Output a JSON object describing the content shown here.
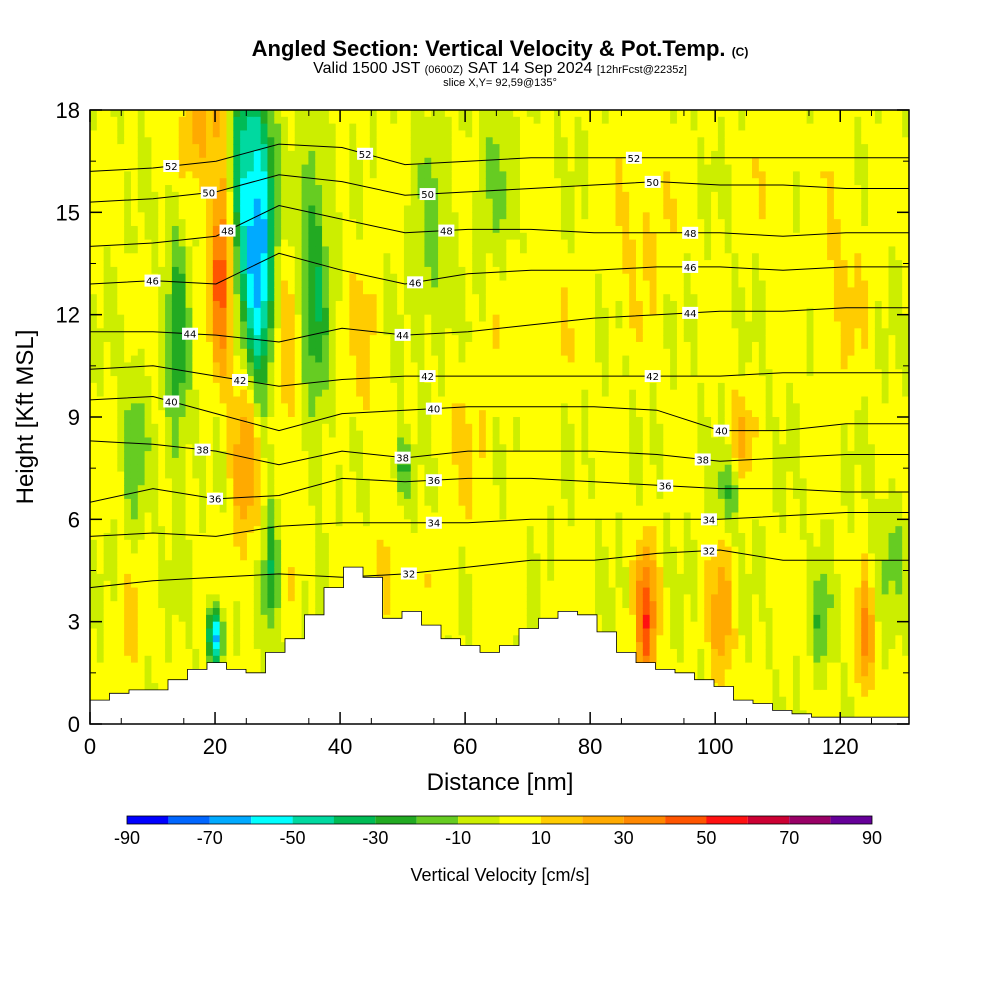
{
  "title": {
    "main": "Angled Section: Vertical Velocity & Pot.Temp.",
    "main_note": "(C)",
    "valid_a": "Valid 1500 JST",
    "valid_b": "(0600Z)",
    "valid_c": "SAT 14 Sep 2024",
    "valid_d": "[12hrFcst@2235z]",
    "slice": "slice X,Y= 92,59@135°"
  },
  "chart_data": {
    "type": "heatmap",
    "xlabel": "Distance [nm]",
    "ylabel": "Height [Kft MSL]",
    "xlim": [
      0,
      131
    ],
    "ylim": [
      0,
      18
    ],
    "x_ticks": [
      0,
      20,
      40,
      60,
      80,
      100,
      120
    ],
    "y_ticks": [
      0,
      3,
      6,
      9,
      12,
      15,
      18
    ],
    "colorbar": {
      "label": "Vertical Velocity [cm/s]",
      "ticks": [
        -90,
        -70,
        -50,
        -30,
        -10,
        10,
        30,
        50,
        70,
        90
      ],
      "bounds": [
        -90,
        -80,
        -70,
        -60,
        -50,
        -40,
        -30,
        -20,
        -10,
        0,
        10,
        20,
        30,
        40,
        50,
        60,
        70,
        80,
        90
      ],
      "colors": [
        "#0000ff",
        "#0066ff",
        "#00aaff",
        "#00ffff",
        "#00d9a0",
        "#00bb55",
        "#22aa22",
        "#66cc22",
        "#ccee00",
        "#ffff00",
        "#ffcc00",
        "#ffaa00",
        "#ff8800",
        "#ff5500",
        "#ff1111",
        "#cc0033",
        "#990066",
        "#660099"
      ]
    },
    "theta_contours": [
      {
        "level": 52,
        "label": "52",
        "y": [
          16.2,
          16.3,
          16.5,
          17.0,
          16.9,
          16.4,
          16.5,
          16.6,
          16.6,
          16.6,
          16.6,
          16.6,
          16.6,
          16.6
        ]
      },
      {
        "level": 50,
        "label": "50",
        "y": [
          15.3,
          15.4,
          15.6,
          16.1,
          15.9,
          15.5,
          15.6,
          15.7,
          15.8,
          15.9,
          15.8,
          15.8,
          15.7,
          15.7
        ]
      },
      {
        "level": 48,
        "label": "48",
        "y": [
          14.0,
          14.1,
          14.3,
          15.2,
          14.8,
          14.4,
          14.5,
          14.5,
          14.4,
          14.4,
          14.4,
          14.3,
          14.4,
          14.4
        ]
      },
      {
        "level": 46,
        "label": "46",
        "y": [
          12.9,
          13.0,
          12.9,
          13.8,
          13.3,
          12.9,
          13.2,
          13.3,
          13.3,
          13.4,
          13.4,
          13.3,
          13.4,
          13.4
        ]
      },
      {
        "level": 44,
        "label": "44",
        "y": [
          11.5,
          11.5,
          11.4,
          11.2,
          11.6,
          11.4,
          11.5,
          11.7,
          11.9,
          12.0,
          12.1,
          12.1,
          12.2,
          12.2
        ]
      },
      {
        "level": 42,
        "label": "42",
        "y": [
          10.4,
          10.5,
          10.2,
          9.9,
          10.1,
          10.2,
          10.2,
          10.2,
          10.2,
          10.2,
          10.2,
          10.3,
          10.3,
          10.3
        ]
      },
      {
        "level": 40,
        "label": "40",
        "y": [
          9.5,
          9.6,
          9.1,
          8.6,
          9.1,
          9.2,
          9.3,
          9.3,
          9.3,
          9.2,
          8.6,
          8.6,
          8.8,
          8.8
        ]
      },
      {
        "level": 38,
        "label": "38",
        "y": [
          8.3,
          8.2,
          8.0,
          7.6,
          8.0,
          7.8,
          8.0,
          8.0,
          8.0,
          7.9,
          7.7,
          7.8,
          7.9,
          7.9
        ]
      },
      {
        "level": 36,
        "label": "36",
        "y": [
          6.5,
          6.9,
          6.6,
          6.7,
          7.2,
          7.1,
          7.2,
          7.2,
          7.1,
          7.0,
          6.9,
          6.9,
          6.8,
          6.8
        ]
      },
      {
        "level": 34,
        "label": "34",
        "y": [
          5.5,
          5.6,
          5.5,
          5.8,
          5.9,
          5.9,
          5.9,
          6.0,
          6.0,
          6.0,
          6.0,
          6.1,
          6.2,
          6.2
        ]
      },
      {
        "level": 32,
        "label": "32",
        "y": [
          4.0,
          4.2,
          4.3,
          4.4,
          4.3,
          4.4,
          4.6,
          4.8,
          4.8,
          5.0,
          5.1,
          4.8,
          4.8,
          4.8
        ]
      }
    ],
    "theta_label_x": {
      "52": [
        13,
        44,
        87
      ],
      "50": [
        19,
        54,
        90
      ],
      "48": [
        22,
        57,
        96
      ],
      "46": [
        10,
        52,
        96
      ],
      "44": [
        16,
        50,
        96
      ],
      "42": [
        24,
        54,
        90
      ],
      "40": [
        13,
        55,
        101
      ],
      "38": [
        18,
        50,
        98
      ],
      "36": [
        20,
        55,
        92
      ],
      "34": [
        55,
        99
      ],
      "32": [
        51,
        99
      ]
    },
    "terrain_kft": [
      0.7,
      0.9,
      1.0,
      1.0,
      1.3,
      1.6,
      1.8,
      1.6,
      1.5,
      2.1,
      2.5,
      3.2,
      4.0,
      4.6,
      4.3,
      3.1,
      3.3,
      2.9,
      2.5,
      2.3,
      2.1,
      2.3,
      2.8,
      3.1,
      3.3,
      3.2,
      2.7,
      2.1,
      1.8,
      1.6,
      1.5,
      1.3,
      1.1,
      0.7,
      0.6,
      0.4,
      0.3,
      0.2,
      0.2,
      0.2,
      0.2,
      0.2
    ]
  }
}
